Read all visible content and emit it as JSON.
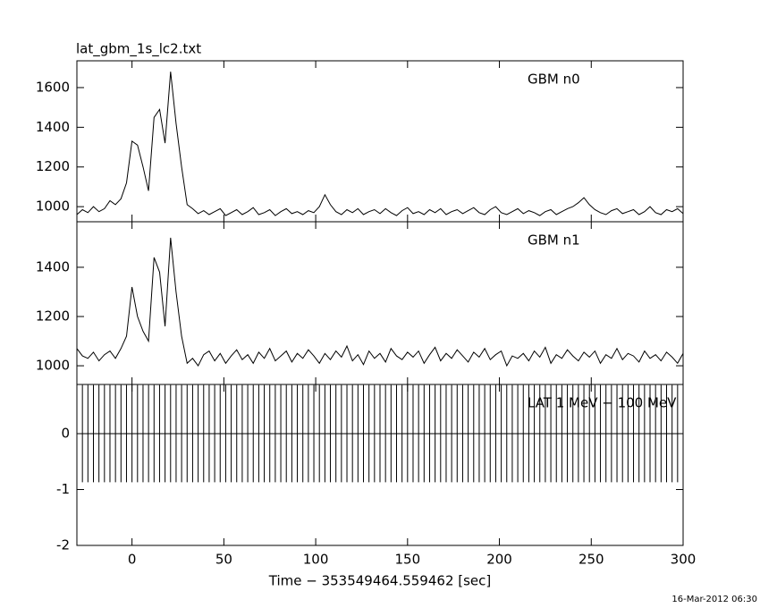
{
  "chart_data": {
    "type": "line",
    "title": "lat_gbm_1s_lc2.txt",
    "xlabel": "Time − 353549464.559462 [sec]",
    "footer": "16-Mar-2012 06:30",
    "xlim": [
      -30,
      300
    ],
    "xticks": [
      0,
      50,
      100,
      150,
      200,
      250,
      300
    ],
    "x": [
      -30,
      -27,
      -24,
      -21,
      -18,
      -15,
      -12,
      -9,
      -6,
      -3,
      0,
      3,
      6,
      9,
      12,
      15,
      18,
      21,
      24,
      27,
      30,
      33,
      36,
      39,
      42,
      45,
      48,
      51,
      54,
      57,
      60,
      63,
      66,
      69,
      72,
      75,
      78,
      81,
      84,
      87,
      90,
      93,
      96,
      99,
      102,
      105,
      108,
      111,
      114,
      117,
      120,
      123,
      126,
      129,
      132,
      135,
      138,
      141,
      144,
      147,
      150,
      153,
      156,
      159,
      162,
      165,
      168,
      171,
      174,
      177,
      180,
      183,
      186,
      189,
      192,
      195,
      198,
      201,
      204,
      207,
      210,
      213,
      216,
      219,
      222,
      225,
      228,
      231,
      234,
      237,
      240,
      243,
      246,
      249,
      252,
      255,
      258,
      261,
      264,
      267,
      270,
      273,
      276,
      279,
      282,
      285,
      288,
      291,
      294,
      297,
      300
    ],
    "series": [
      {
        "name": "GBM n0",
        "color": "#000000",
        "ylim": [
          924,
          1735
        ],
        "yticks": [
          1000,
          1200,
          1400,
          1600
        ],
        "values": [
          960,
          985,
          970,
          1000,
          975,
          990,
          1030,
          1010,
          1040,
          1120,
          1330,
          1310,
          1200,
          1080,
          1450,
          1490,
          1320,
          1680,
          1420,
          1200,
          1010,
          990,
          965,
          980,
          960,
          975,
          990,
          955,
          970,
          985,
          960,
          975,
          995,
          960,
          970,
          985,
          955,
          975,
          990,
          965,
          975,
          960,
          980,
          970,
          1000,
          1060,
          1010,
          975,
          960,
          985,
          970,
          990,
          960,
          975,
          985,
          965,
          990,
          970,
          955,
          980,
          995,
          965,
          975,
          960,
          985,
          970,
          990,
          960,
          975,
          985,
          965,
          980,
          995,
          970,
          960,
          985,
          1000,
          970,
          960,
          975,
          990,
          965,
          980,
          970,
          955,
          975,
          985,
          960,
          975,
          990,
          1000,
          1020,
          1045,
          1010,
          985,
          970,
          960,
          980,
          990,
          965,
          975,
          985,
          960,
          975,
          1000,
          970,
          960,
          985,
          975,
          990,
          965
        ]
      },
      {
        "name": "GBM n1",
        "color": "#000000",
        "ylim": [
          924,
          1585
        ],
        "yticks": [
          1000,
          1200,
          1400
        ],
        "values": [
          1070,
          1040,
          1030,
          1055,
          1020,
          1045,
          1060,
          1030,
          1070,
          1120,
          1320,
          1200,
          1140,
          1100,
          1440,
          1380,
          1160,
          1520,
          1300,
          1120,
          1010,
          1030,
          1000,
          1045,
          1060,
          1020,
          1050,
          1010,
          1040,
          1065,
          1025,
          1045,
          1010,
          1055,
          1030,
          1070,
          1020,
          1040,
          1060,
          1015,
          1050,
          1030,
          1065,
          1040,
          1010,
          1050,
          1025,
          1060,
          1035,
          1080,
          1020,
          1045,
          1005,
          1060,
          1030,
          1050,
          1015,
          1070,
          1040,
          1025,
          1055,
          1035,
          1060,
          1010,
          1045,
          1075,
          1020,
          1050,
          1030,
          1065,
          1040,
          1015,
          1055,
          1035,
          1070,
          1025,
          1045,
          1060,
          1000,
          1040,
          1030,
          1050,
          1020,
          1060,
          1035,
          1075,
          1010,
          1045,
          1030,
          1065,
          1040,
          1020,
          1055,
          1035,
          1060,
          1010,
          1045,
          1030,
          1070,
          1025,
          1050,
          1040,
          1015,
          1060,
          1030,
          1045,
          1020,
          1055,
          1035,
          1010,
          1050
        ]
      },
      {
        "name": "LAT 1 MeV − 100 MeV",
        "color": "#000000",
        "style": "errorbar",
        "ylim": [
          -2,
          0.88
        ],
        "yticks": [
          -2,
          -1,
          0
        ],
        "values": [
          0,
          0,
          0,
          0,
          0,
          0,
          0,
          0,
          0,
          0,
          0,
          0,
          0,
          0,
          0,
          0,
          0,
          0,
          0,
          0,
          0,
          0,
          0,
          0,
          0,
          0,
          0,
          0,
          0,
          0,
          0,
          0,
          0,
          0,
          0,
          0,
          0,
          0,
          0,
          0,
          0,
          0,
          0,
          0,
          0,
          0,
          0,
          0,
          0,
          0,
          0,
          0,
          0,
          0,
          0,
          0,
          0,
          0,
          0,
          0,
          0,
          0,
          0,
          0,
          0,
          0,
          0,
          0,
          0,
          0,
          0,
          0,
          0,
          0,
          0,
          0,
          0,
          0,
          0,
          0,
          0,
          0,
          0,
          0,
          0,
          0,
          0,
          0,
          0,
          0,
          0,
          0,
          0,
          0,
          0,
          0,
          0,
          0,
          0,
          0,
          0,
          0,
          0,
          0,
          0,
          0,
          0,
          0,
          0,
          0,
          0
        ],
        "errors": [
          0.87,
          0.87,
          0.87,
          0.87,
          0.87,
          0.87,
          0.87,
          0.87,
          0.87,
          0.87,
          0.87,
          0.87,
          0.87,
          0.87,
          0.87,
          0.87,
          0.87,
          0.87,
          0.87,
          0.87,
          0.87,
          0.87,
          0.87,
          0.87,
          0.87,
          0.87,
          0.87,
          0.87,
          0.87,
          0.87,
          0.87,
          0.87,
          0.87,
          0.87,
          0.87,
          0.87,
          0.87,
          0.87,
          0.87,
          0.87,
          0.87,
          0.87,
          0.87,
          0.87,
          0.87,
          0.87,
          0.87,
          0.87,
          0.87,
          0.87,
          0.87,
          0.87,
          0.87,
          0.87,
          0.87,
          0.87,
          0.87,
          0.87,
          0.87,
          0.87,
          0.87,
          0.87,
          0.87,
          0.87,
          0.87,
          0.87,
          0.87,
          0.87,
          0.87,
          0.87,
          0.87,
          0.87,
          0.87,
          0.87,
          0.87,
          0.87,
          0.87,
          0.87,
          0.87,
          0.87,
          0.87,
          0.87,
          0.87,
          0.87,
          0.87,
          0.87,
          0.87,
          0.87,
          0.87,
          0.87,
          0.87,
          0.87,
          0.87,
          0.87,
          0.87,
          0.87,
          0.87,
          0.87,
          0.87,
          0.87,
          0.87,
          0.87,
          0.87,
          0.87,
          0.87,
          0.87,
          0.87,
          0.87,
          0.87,
          0.87,
          0.87
        ]
      }
    ]
  }
}
